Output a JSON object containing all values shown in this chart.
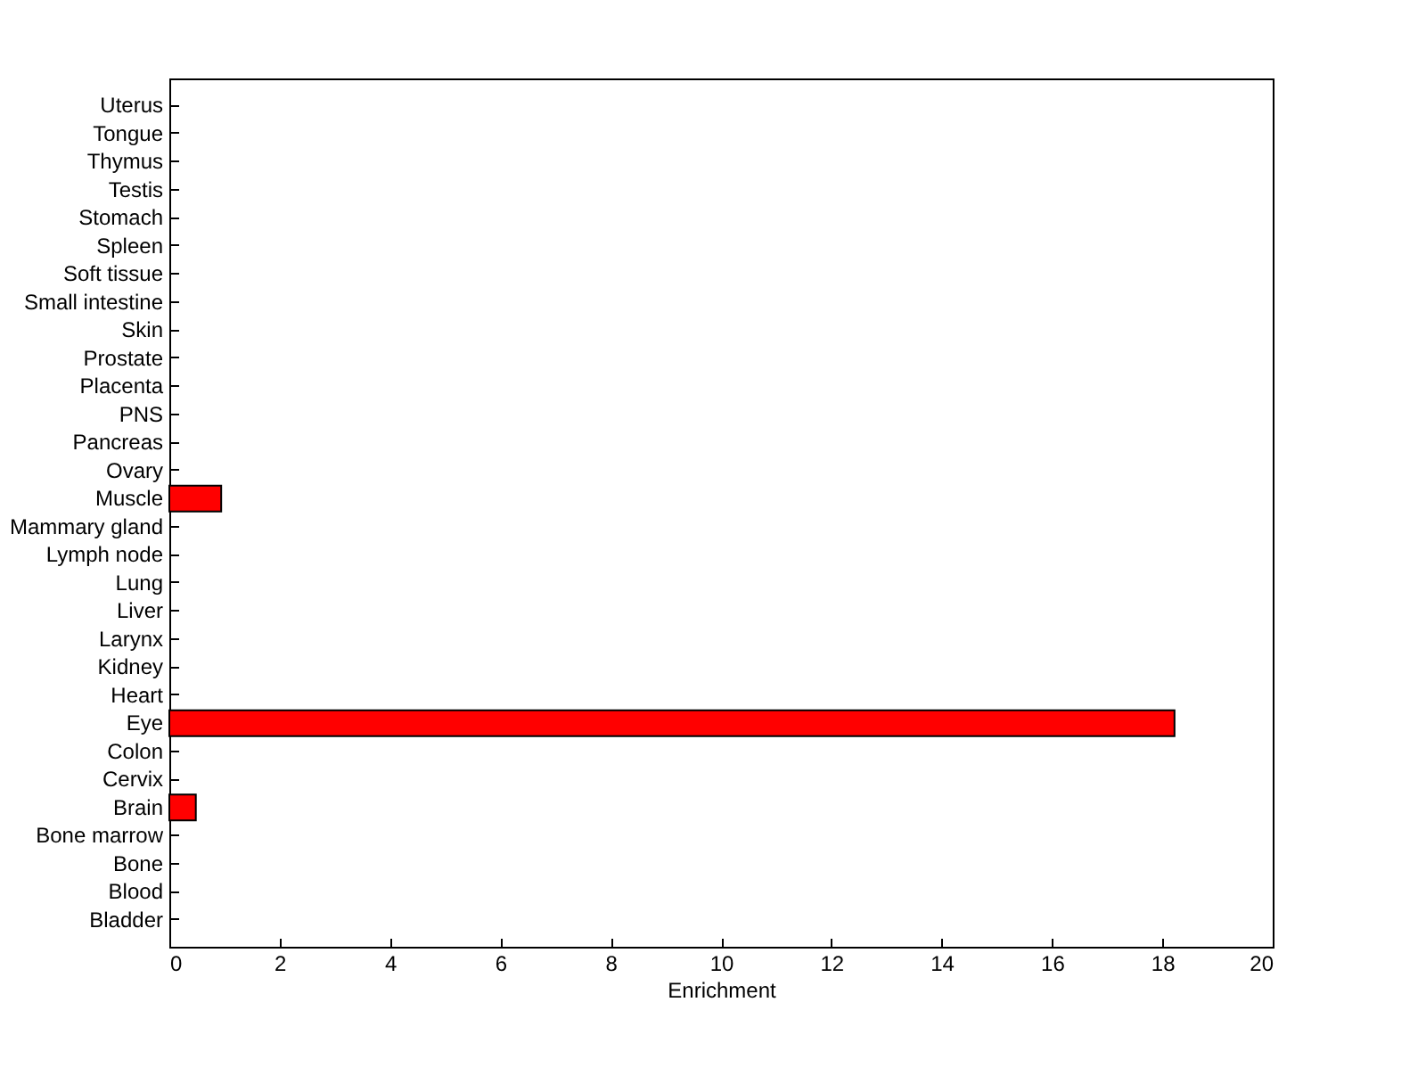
{
  "chart_data": {
    "type": "bar",
    "orientation": "horizontal",
    "xlabel": "Enrichment",
    "categories": [
      "Uterus",
      "Tongue",
      "Thymus",
      "Testis",
      "Stomach",
      "Spleen",
      "Soft tissue",
      "Small intestine",
      "Skin",
      "Prostate",
      "Placenta",
      "PNS",
      "Pancreas",
      "Ovary",
      "Muscle",
      "Mammary gland",
      "Lymph node",
      "Lung",
      "Liver",
      "Larynx",
      "Kidney",
      "Heart",
      "Eye",
      "Colon",
      "Cervix",
      "Brain",
      "Bone marrow",
      "Bone",
      "Blood",
      "Bladder"
    ],
    "values": [
      0,
      0,
      0,
      0,
      0,
      0,
      0,
      0,
      0,
      0,
      0,
      0,
      0,
      0,
      0.94,
      0,
      0,
      0,
      0,
      0,
      0,
      0,
      18.22,
      0,
      0,
      0.48,
      0,
      0,
      0,
      0
    ],
    "color": "#ff0000",
    "xlim": [
      0,
      20
    ],
    "xticks": [
      0,
      2,
      4,
      6,
      8,
      10,
      12,
      14,
      16,
      18,
      20
    ],
    "grid": false
  }
}
